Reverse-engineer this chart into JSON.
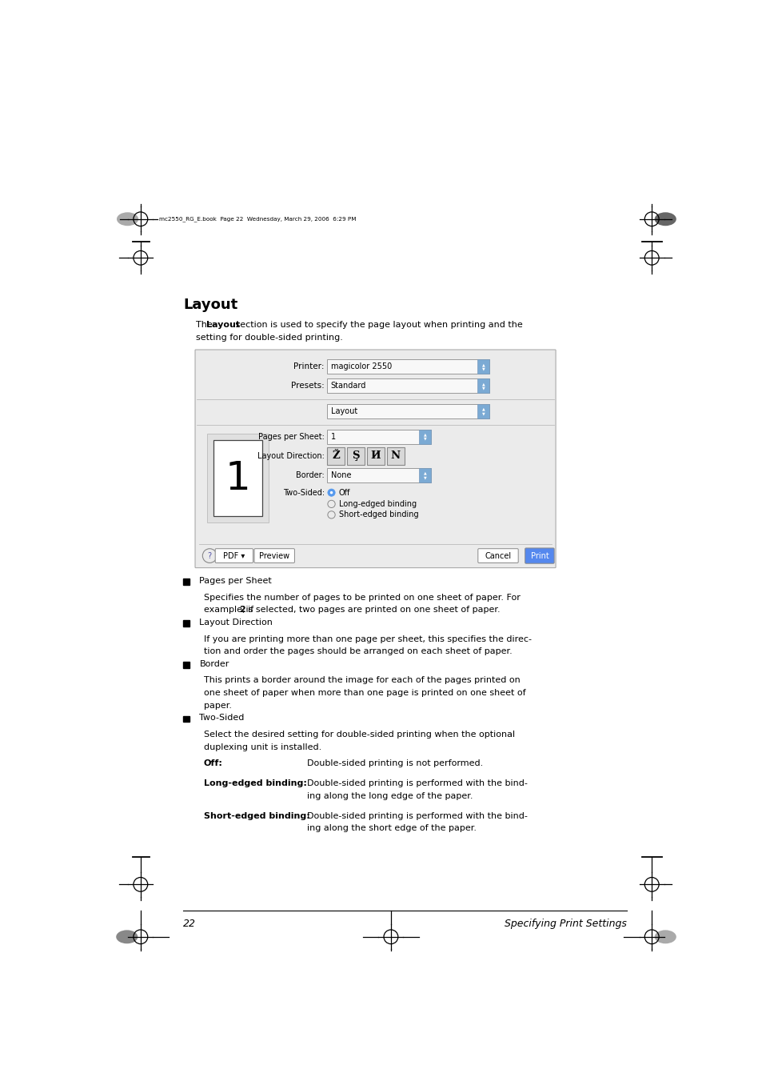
{
  "bg_color": "#ffffff",
  "page_width": 9.54,
  "page_height": 13.51,
  "dpi": 100,
  "header_text": "mc2550_RG_E.book  Page 22  Wednesday, March 29, 2006  6:29 PM",
  "title": "Layout",
  "intro_text1": "The ",
  "intro_bold": "Layout",
  "intro_text2": " section is used to specify the page layout when printing and the",
  "intro_line2": "setting for double-sided printing.",
  "dialog": {
    "printer_value": "magicolor 2550",
    "presets_value": "Standard",
    "layout_value": "Layout",
    "pages_value": "1",
    "border_value": "None",
    "radio_off": "Off",
    "radio_long": "Long-edged binding",
    "radio_short": "Short-edged binding"
  },
  "bullets": [
    {
      "title": "Pages per Sheet",
      "lines": [
        "Specifies the number of pages to be printed on one sheet of paper. For",
        "example, if 2 is selected, two pages are printed on one sheet of paper."
      ]
    },
    {
      "title": "Layout Direction",
      "lines": [
        "If you are printing more than one page per sheet, this specifies the direc-",
        "tion and order the pages should be arranged on each sheet of paper."
      ]
    },
    {
      "title": "Border",
      "lines": [
        "This prints a border around the image for each of the pages printed on",
        "one sheet of paper when more than one page is printed on one sheet of",
        "paper."
      ]
    },
    {
      "title": "Two-Sided",
      "lines": [
        "Select the desired setting for double-sided printing when the optional",
        "duplexing unit is installed."
      ]
    }
  ],
  "table_rows": [
    {
      "term": "Off",
      "def_lines": [
        "Double-sided printing is not performed."
      ]
    },
    {
      "term": "Long-edged binding",
      "def_lines": [
        "Double-sided printing is performed with the bind-",
        "ing along the long edge of the paper."
      ]
    },
    {
      "term": "Short-edged binding",
      "def_lines": [
        "Double-sided printing is performed with the bind-",
        "ing along the short edge of the paper."
      ]
    }
  ],
  "footer_page": "22",
  "footer_title": "Specifying Print Settings"
}
